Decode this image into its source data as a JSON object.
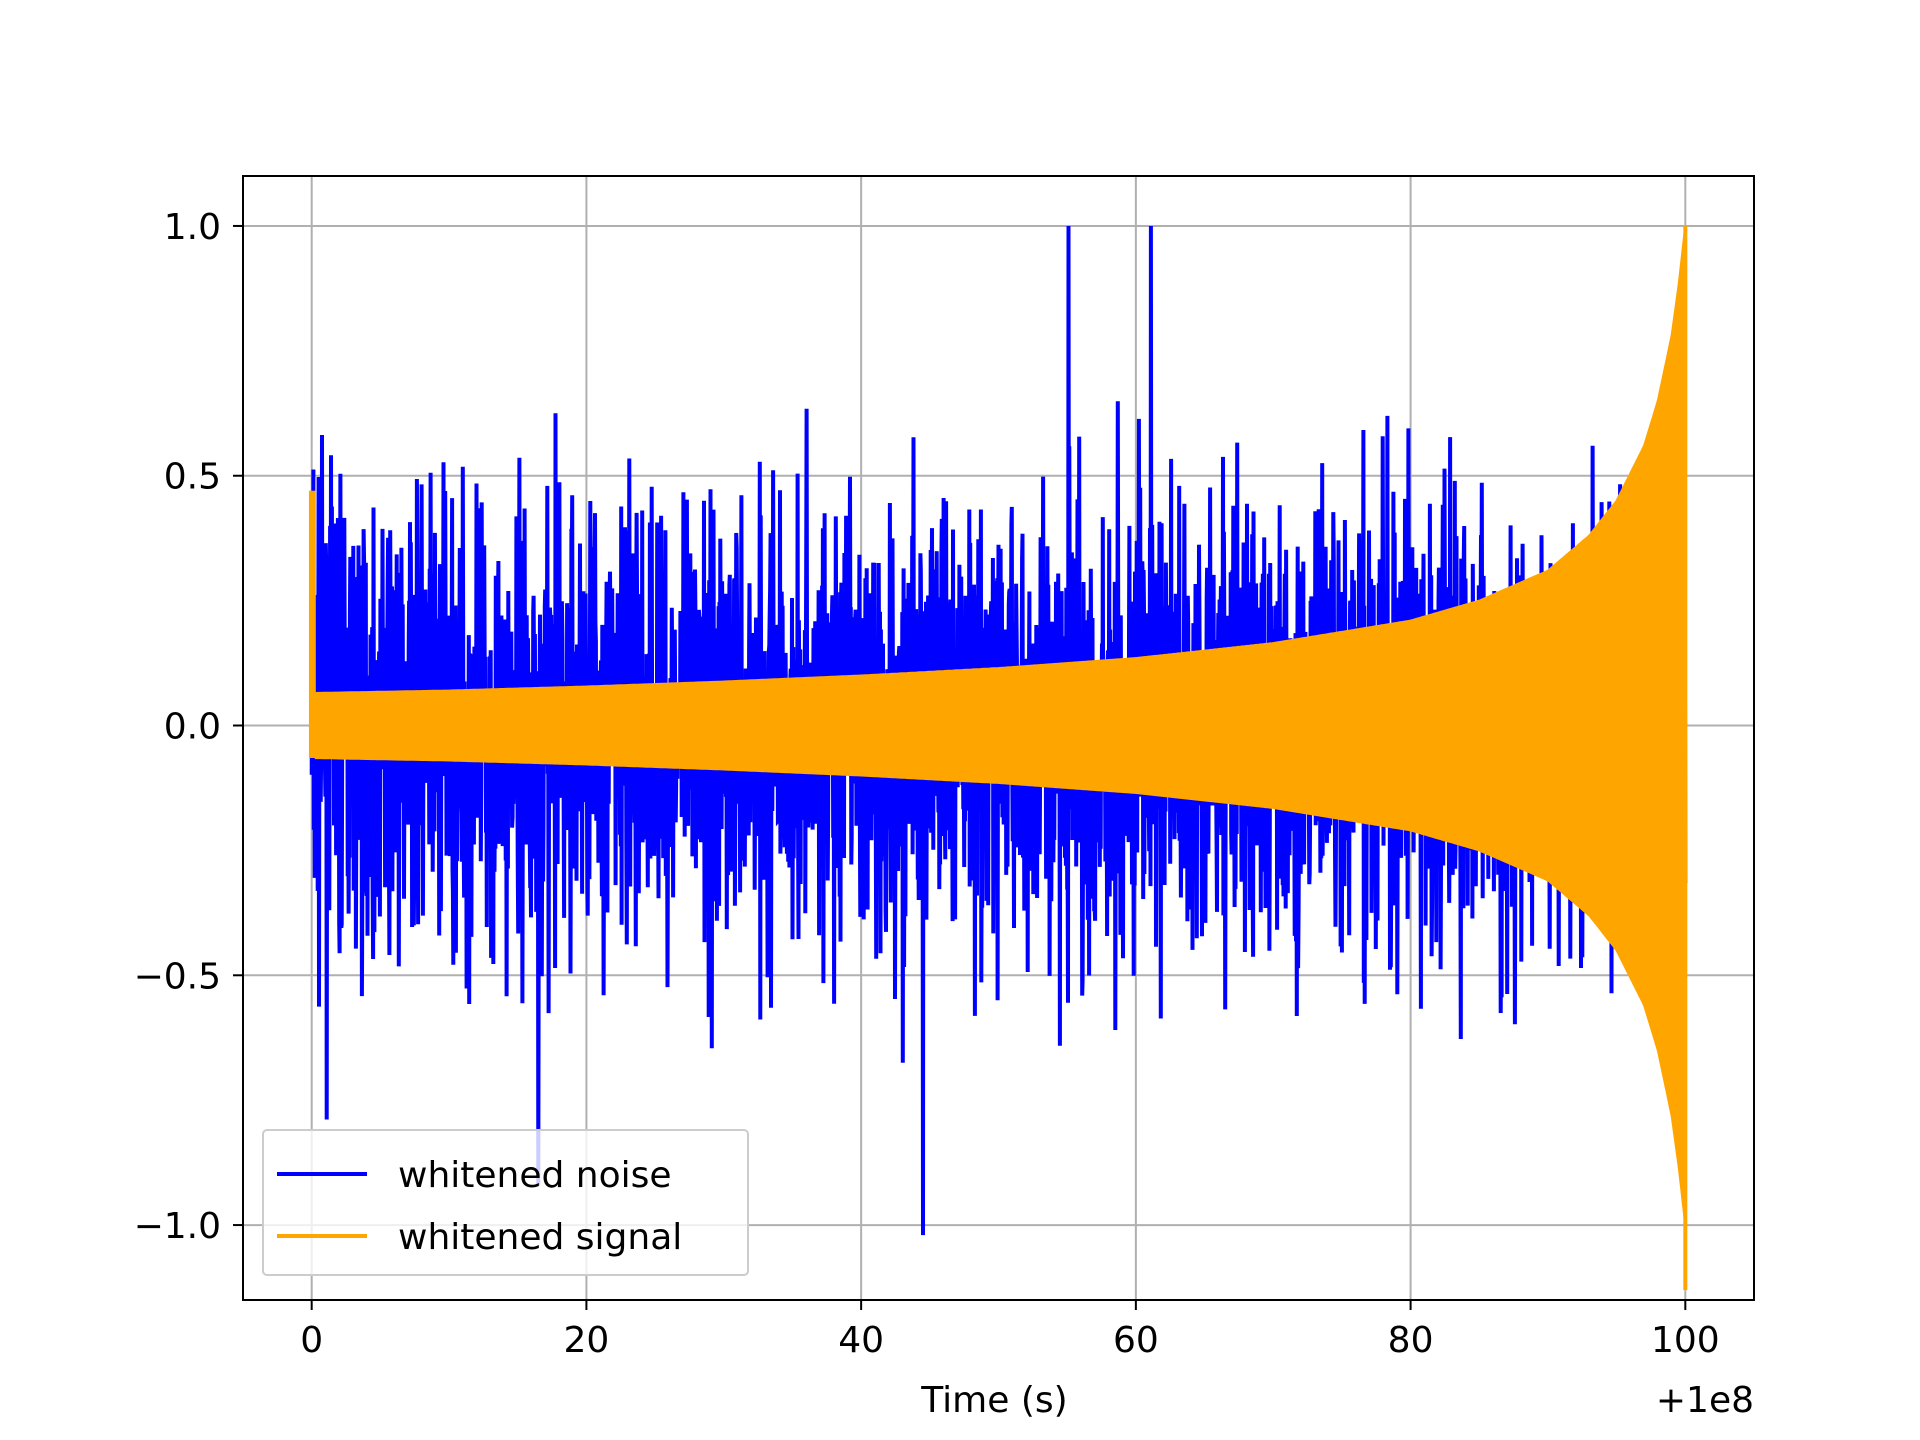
{
  "chart_data": {
    "type": "line",
    "title": "",
    "xlabel": "Time (s)",
    "ylabel": "",
    "x_offset_label": "+1e8",
    "xlim": [
      -5,
      105
    ],
    "ylim": [
      -1.15,
      1.1
    ],
    "x_ticks": [
      0,
      20,
      40,
      60,
      80,
      100
    ],
    "x_tick_labels": [
      "0",
      "20",
      "40",
      "60",
      "80",
      "100"
    ],
    "y_ticks": [
      -1.0,
      -0.5,
      0.0,
      0.5,
      1.0
    ],
    "y_tick_labels": [
      "−1.0",
      "−0.5",
      "0.0",
      "0.5",
      "1.0"
    ],
    "grid": true,
    "legend_position": "lower-left",
    "colors": {
      "noise": "#0000ff",
      "signal": "#ffa500",
      "grid": "#b0b0b0"
    },
    "series": [
      {
        "name": "whitened noise",
        "x_range": [
          0,
          100
        ],
        "typical_envelope": [
          -0.62,
          0.62
        ],
        "extremes": {
          "max": 1.0,
          "min": -1.02
        }
      },
      {
        "name": "whitened signal",
        "x": [
          0,
          10,
          20,
          30,
          40,
          50,
          60,
          70,
          80,
          85,
          90,
          93,
          95,
          97,
          98,
          99,
          99.5,
          100
        ],
        "amplitude": [
          0.065,
          0.07,
          0.078,
          0.088,
          0.1,
          0.115,
          0.135,
          0.165,
          0.21,
          0.25,
          0.31,
          0.38,
          0.45,
          0.56,
          0.65,
          0.78,
          0.88,
          1.0
        ],
        "start_spike": 0.47,
        "end_min": -1.13
      }
    ]
  }
}
